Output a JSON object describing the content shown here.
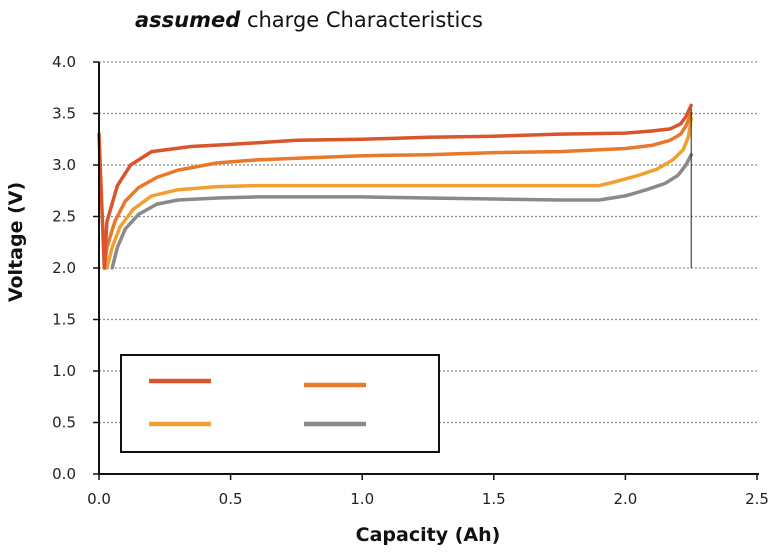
{
  "chart_data": {
    "type": "line",
    "title": {
      "emphasis": "assumed",
      "rest": " charge Characteristics"
    },
    "xlabel": "Capacity (Ah)",
    "ylabel": "Voltage (V)",
    "xlim": [
      0,
      2.5
    ],
    "ylim": [
      0,
      4.0
    ],
    "x_ticks": [
      "0.0",
      "0.5",
      "1.0",
      "1.5",
      "2.0",
      "2.5"
    ],
    "y_ticks": [
      "0.0",
      "0.5",
      "1.0",
      "1.5",
      "2.0",
      "2.5",
      "3.0",
      "3.5",
      "4.0"
    ],
    "grid": "horizontal dotted",
    "legend": {
      "placement": "lower-left",
      "entries_labeled": false
    },
    "series": [
      {
        "color": "#d9552b",
        "points": [
          [
            0.0,
            3.3
          ],
          [
            0.02,
            2.0
          ],
          [
            0.03,
            2.45
          ],
          [
            0.07,
            2.8
          ],
          [
            0.12,
            3.0
          ],
          [
            0.2,
            3.13
          ],
          [
            0.35,
            3.18
          ],
          [
            0.5,
            3.2
          ],
          [
            0.75,
            3.24
          ],
          [
            1.0,
            3.25
          ],
          [
            1.25,
            3.27
          ],
          [
            1.5,
            3.28
          ],
          [
            1.75,
            3.3
          ],
          [
            2.0,
            3.31
          ],
          [
            2.1,
            3.33
          ],
          [
            2.17,
            3.35
          ],
          [
            2.21,
            3.4
          ],
          [
            2.23,
            3.47
          ],
          [
            2.25,
            3.58
          ]
        ]
      },
      {
        "color": "#e8782a",
        "points": [
          [
            0.02,
            2.0
          ],
          [
            0.03,
            2.2
          ],
          [
            0.06,
            2.45
          ],
          [
            0.1,
            2.65
          ],
          [
            0.15,
            2.78
          ],
          [
            0.22,
            2.88
          ],
          [
            0.3,
            2.95
          ],
          [
            0.45,
            3.02
          ],
          [
            0.6,
            3.05
          ],
          [
            0.8,
            3.07
          ],
          [
            1.0,
            3.09
          ],
          [
            1.25,
            3.1
          ],
          [
            1.5,
            3.12
          ],
          [
            1.75,
            3.13
          ],
          [
            2.0,
            3.16
          ],
          [
            2.1,
            3.19
          ],
          [
            2.17,
            3.24
          ],
          [
            2.21,
            3.3
          ],
          [
            2.23,
            3.38
          ],
          [
            2.25,
            3.5
          ]
        ]
      },
      {
        "color": "#f0a030",
        "points": [
          [
            0.03,
            2.0
          ],
          [
            0.05,
            2.2
          ],
          [
            0.08,
            2.4
          ],
          [
            0.13,
            2.57
          ],
          [
            0.2,
            2.7
          ],
          [
            0.3,
            2.76
          ],
          [
            0.45,
            2.79
          ],
          [
            0.6,
            2.8
          ],
          [
            0.8,
            2.8
          ],
          [
            1.0,
            2.8
          ],
          [
            1.25,
            2.8
          ],
          [
            1.5,
            2.8
          ],
          [
            1.75,
            2.8
          ],
          [
            1.9,
            2.8
          ],
          [
            1.95,
            2.83
          ],
          [
            2.05,
            2.9
          ],
          [
            2.12,
            2.96
          ],
          [
            2.18,
            3.05
          ],
          [
            2.22,
            3.15
          ],
          [
            2.24,
            3.28
          ],
          [
            2.25,
            3.45
          ]
        ]
      },
      {
        "color": "#8a8a8a",
        "points": [
          [
            0.05,
            2.0
          ],
          [
            0.07,
            2.2
          ],
          [
            0.1,
            2.38
          ],
          [
            0.15,
            2.52
          ],
          [
            0.22,
            2.62
          ],
          [
            0.3,
            2.66
          ],
          [
            0.45,
            2.68
          ],
          [
            0.6,
            2.69
          ],
          [
            0.8,
            2.69
          ],
          [
            1.0,
            2.69
          ],
          [
            1.25,
            2.68
          ],
          [
            1.5,
            2.67
          ],
          [
            1.75,
            2.66
          ],
          [
            1.9,
            2.66
          ],
          [
            2.0,
            2.7
          ],
          [
            2.08,
            2.76
          ],
          [
            2.15,
            2.82
          ],
          [
            2.2,
            2.9
          ],
          [
            2.23,
            3.0
          ],
          [
            2.25,
            3.1
          ]
        ]
      }
    ]
  }
}
